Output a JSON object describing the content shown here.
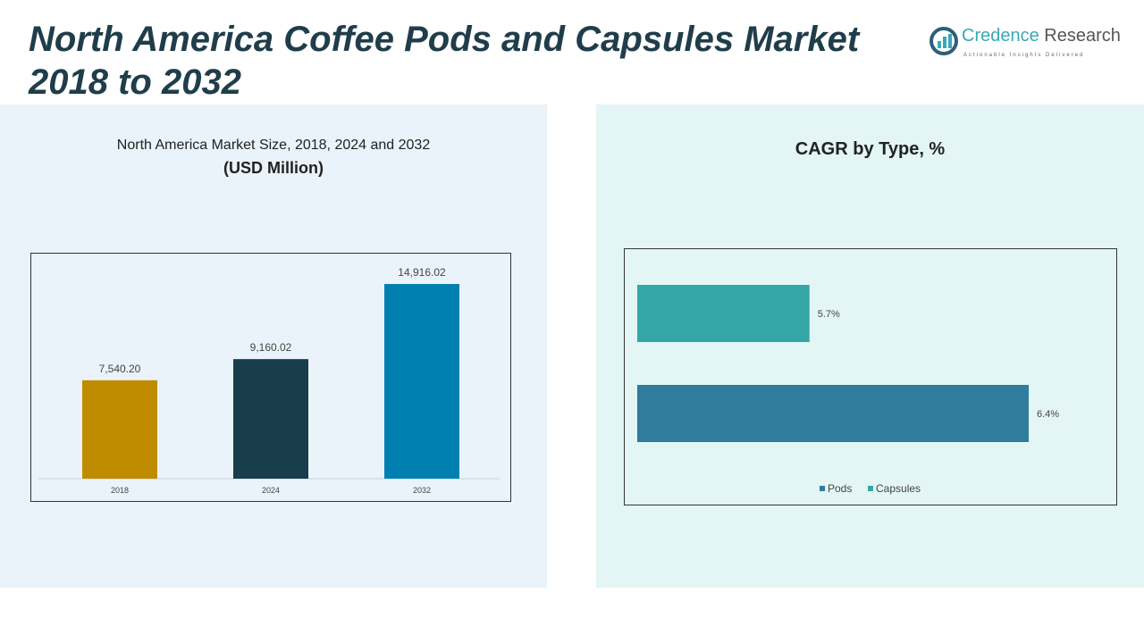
{
  "title": "North America Coffee Pods and Capsules Market 2018 to 2032",
  "logo": {
    "brand_a": "Credence",
    "brand_b": " Research",
    "tagline": "Actionable Insights Delivered"
  },
  "chart_data": [
    {
      "type": "bar",
      "title": "North America Market Size, 2018, 2024 and 2032",
      "subtitle": "(USD Million)",
      "categories": [
        "2018",
        "2024",
        "2032"
      ],
      "values": [
        7540.2,
        9160.02,
        14916.02
      ],
      "labels": [
        "7,540.20",
        "9,160.02",
        "14,916.02"
      ],
      "colors": [
        "#bf8c00",
        "#173e4a",
        "#0080b0"
      ],
      "ylim": [
        0,
        14916.02
      ]
    },
    {
      "type": "bar",
      "orientation": "horizontal",
      "title": "CAGR by Type, %",
      "categories": [
        "Capsules",
        "Pods"
      ],
      "values": [
        5.7,
        6.4
      ],
      "labels": [
        "5.7%",
        "6.4%"
      ],
      "colors": [
        "#34a6a6",
        "#2f7c9c"
      ],
      "xlim": [
        5.15,
        6.4
      ],
      "legend": [
        "Pods",
        "Capsules"
      ],
      "legend_colors": [
        "#2f7c9c",
        "#34a6a6"
      ],
      "legend_position": "bottom"
    }
  ]
}
